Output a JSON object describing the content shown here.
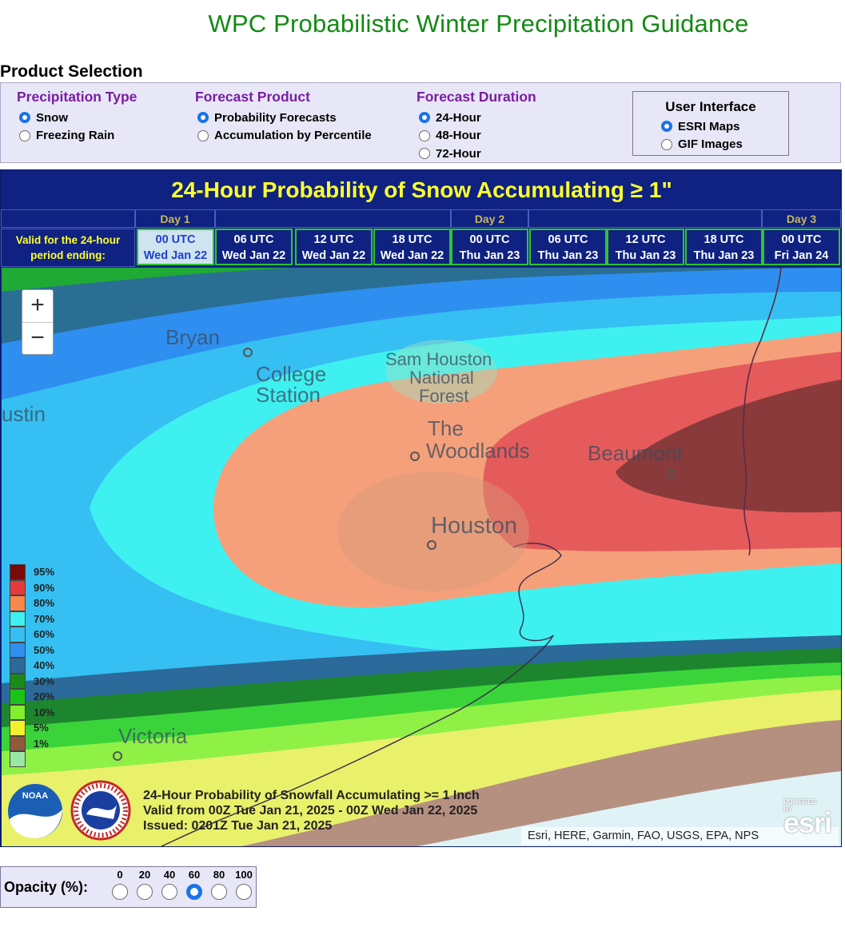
{
  "page_title": "WPC Probabilistic Winter Precipitation Guidance",
  "product_selection": {
    "heading": "Product Selection",
    "precip_type": {
      "title": "Precipitation Type",
      "options": [
        "Snow",
        "Freezing Rain"
      ],
      "selected": 0
    },
    "forecast_product": {
      "title": "Forecast Product",
      "options": [
        "Probability Forecasts",
        "Accumulation by Percentile"
      ],
      "selected": 0
    },
    "forecast_duration": {
      "title": "Forecast Duration",
      "options": [
        "24-Hour",
        "48-Hour",
        "72-Hour"
      ],
      "selected": 0
    },
    "user_interface": {
      "title": "User Interface",
      "options": [
        "ESRI Maps",
        "GIF Images"
      ],
      "selected": 0
    }
  },
  "viewer": {
    "title": "24-Hour Probability of Snow Accumulating ≥ 1\"",
    "valid_label_line1": "Valid for the 24-hour",
    "valid_label_line2": "period ending:",
    "days": [
      "Day 1",
      "Day 2",
      "Day 3"
    ],
    "times": [
      {
        "utc": "00 UTC",
        "date": "Wed Jan 22"
      },
      {
        "utc": "06 UTC",
        "date": "Wed Jan 22"
      },
      {
        "utc": "12 UTC",
        "date": "Wed Jan 22"
      },
      {
        "utc": "18 UTC",
        "date": "Wed Jan 22"
      },
      {
        "utc": "00 UTC",
        "date": "Thu Jan 23"
      },
      {
        "utc": "06 UTC",
        "date": "Thu Jan 23"
      },
      {
        "utc": "12 UTC",
        "date": "Thu Jan 23"
      },
      {
        "utc": "18 UTC",
        "date": "Thu Jan 23"
      },
      {
        "utc": "00 UTC",
        "date": "Fri Jan 24"
      }
    ],
    "selected_time": 0
  },
  "map": {
    "zoom_in": "+",
    "zoom_out": "−",
    "places": {
      "bryan": "Bryan",
      "college": "College",
      "station": "Station",
      "austin": "ustin",
      "sam_houston_1": "Sam Houston",
      "sam_houston_2": "National",
      "sam_houston_3": "Forest",
      "the": "The",
      "woodlands": "Woodlands",
      "beaumont": "Beaumont",
      "houston": "Houston",
      "victoria": "Victoria"
    },
    "legend": [
      {
        "label": "95%",
        "color": "#7a0a0a"
      },
      {
        "label": "90%",
        "color": "#e33b3b"
      },
      {
        "label": "80%",
        "color": "#f5894c"
      },
      {
        "label": "70%",
        "color": "#3ff0f0"
      },
      {
        "label": "60%",
        "color": "#36bff2"
      },
      {
        "label": "50%",
        "color": "#2e8ff0"
      },
      {
        "label": "40%",
        "color": "#2b6a9a"
      },
      {
        "label": "30%",
        "color": "#1a8a1a"
      },
      {
        "label": "20%",
        "color": "#19c419"
      },
      {
        "label": "10%",
        "color": "#7ff02b"
      },
      {
        "label": "5%",
        "color": "#f0f02b"
      },
      {
        "label": "1%",
        "color": "#8f5a3a"
      },
      {
        "label": "",
        "color": "#9ae8a3"
      }
    ],
    "caption_line1": "24-Hour Probability of Snowfall Accumulating >= 1 Inch",
    "caption_line2": "Valid from 00Z Tue Jan 21, 2025 - 00Z Wed Jan 22, 2025",
    "caption_line3": "Issued: 0201Z Tue Jan 21, 2025",
    "logo_noaa": "NOAA",
    "attribution": "Esri, HERE, Garmin, FAO, USGS, EPA, NPS",
    "esri_powered": "POWERED BY",
    "esri_logo": "esri"
  },
  "opacity": {
    "label": "Opacity (%):",
    "options": [
      "0",
      "20",
      "40",
      "60",
      "80",
      "100"
    ],
    "selected": 3
  }
}
